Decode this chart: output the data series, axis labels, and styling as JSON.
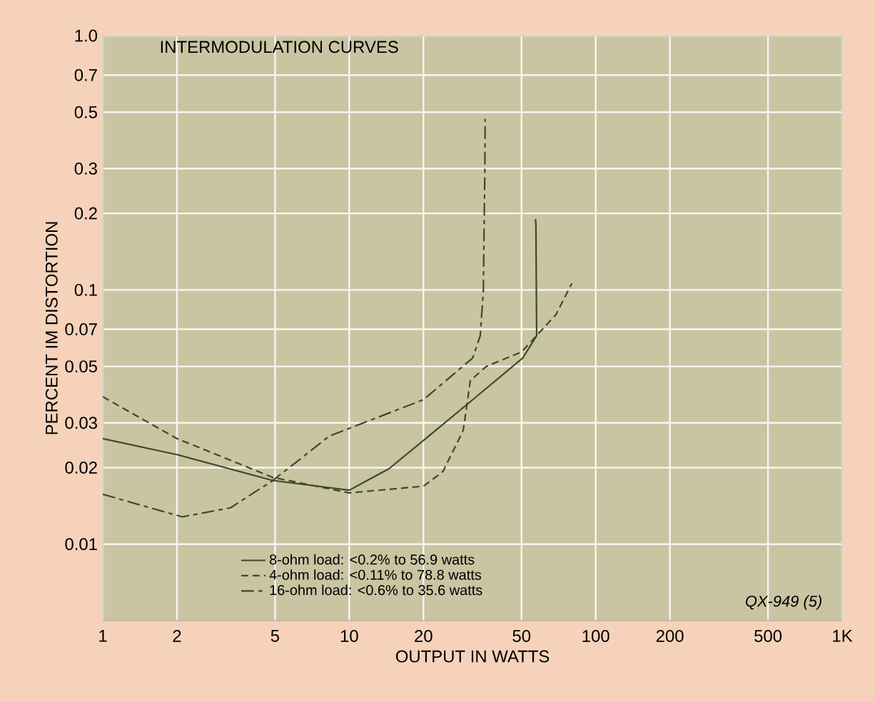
{
  "chart_data": {
    "type": "line",
    "title": "INTERMODULATION CURVES",
    "xlabel": "OUTPUT IN WATTS",
    "ylabel": "PERCENT IM DISTORTION",
    "log": "xy",
    "grid": true,
    "legend": "bottom",
    "xlim": [
      1,
      1000
    ],
    "ylim": [
      0.005,
      1.0
    ],
    "xticks": [
      1,
      2,
      5,
      10,
      20,
      50,
      100,
      200,
      500,
      {
        "value": 1000,
        "label": "1K"
      }
    ],
    "yticks": [
      0.01,
      0.02,
      0.03,
      0.05,
      0.07,
      0.1,
      0.2,
      0.3,
      0.5,
      0.7,
      {
        "value": 1.0,
        "label": "1.0"
      }
    ],
    "annotations": [
      "QX-949 (5)"
    ],
    "series": [
      {
        "name": "8-ohm load: <0.2% to 56.9 watts",
        "color": "#3d4a2a",
        "line_style": "solid",
        "x": [
          1,
          2,
          4.9,
          10,
          14.5,
          21,
          31.7,
          50.6,
          57.6,
          57.2,
          57
        ],
        "values": [
          0.026,
          0.0225,
          0.0178,
          0.0163,
          0.0198,
          0.0266,
          0.037,
          0.054,
          0.066,
          0.18,
          0.19
        ]
      },
      {
        "name": "4-ohm load: <0.11% to 78.8 watts",
        "color": "#3d4a2a",
        "line_style": "dashed",
        "x": [
          1,
          2,
          4.9,
          10,
          20,
          24,
          29,
          31,
          36,
          50,
          69,
          80
        ],
        "values": [
          0.038,
          0.026,
          0.0183,
          0.0159,
          0.0169,
          0.0193,
          0.028,
          0.044,
          0.05,
          0.057,
          0.08,
          0.106
        ]
      },
      {
        "name": "16-ohm load: <0.6% to 35.6 watts",
        "color": "#3d4a2a",
        "line_style": "dashdot",
        "x": [
          1,
          2.1,
          3.3,
          4.9,
          8.3,
          20,
          31.7,
          34,
          35,
          35.5,
          35.6
        ],
        "values": [
          0.0157,
          0.0128,
          0.0139,
          0.0178,
          0.0266,
          0.037,
          0.054,
          0.066,
          0.099,
          0.3,
          0.47
        ]
      }
    ]
  }
}
